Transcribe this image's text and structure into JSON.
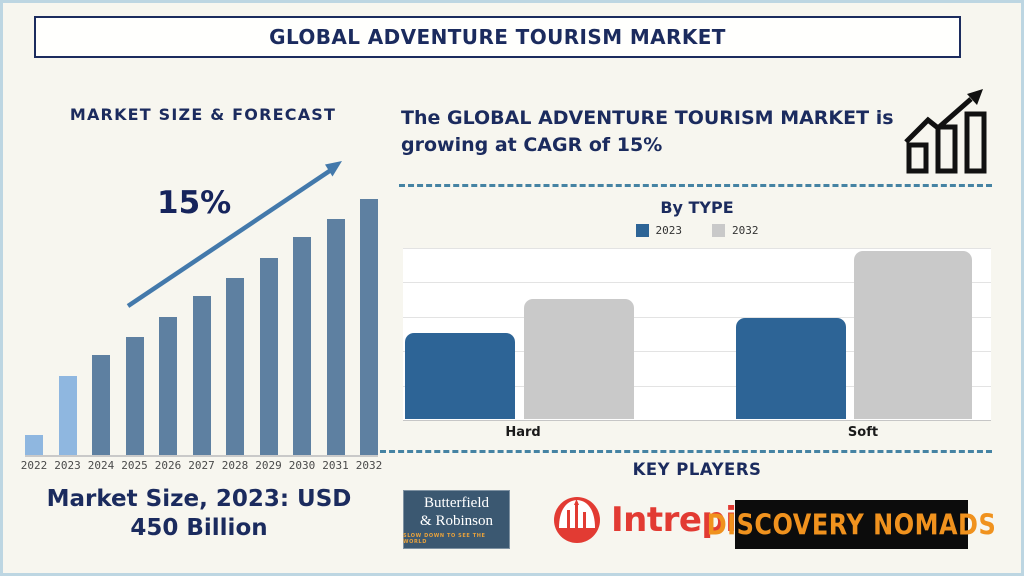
{
  "title_bar": "GLOBAL ADVENTURE TOURISM MARKET",
  "left_panel": {
    "heading": "MARKET SIZE & FORECAST",
    "growth_label": "15%",
    "caption": "Market Size, 2023: USD 450 Billion"
  },
  "right_panel": {
    "cagr_text": "The GLOBAL ADVENTURE TOURISM MARKET is growing at CAGR of 15%",
    "key_players_heading": "KEY PLAYERS",
    "players": [
      {
        "name": "Butterfield & Robinson",
        "line1": "Butterfield",
        "line2": "& Robinson",
        "tagline": "SLOW DOWN TO SEE THE WORLD"
      },
      {
        "name": "Intrepid",
        "label": "Intrepid"
      },
      {
        "name": "Discovery Nomads",
        "label": "DISCOVERY NOMADS"
      }
    ]
  },
  "chart_data": [
    {
      "type": "bar",
      "title": "MARKET SIZE & FORECAST",
      "categories": [
        "2022",
        "2023",
        "2024",
        "2025",
        "2026",
        "2027",
        "2028",
        "2029",
        "2030",
        "2031",
        "2032"
      ],
      "values": [
        8,
        31,
        39,
        46,
        54,
        62,
        69,
        77,
        85,
        92,
        100
      ],
      "unit": "relative bar height, % of tallest (stylized forecast)",
      "bar_color_keys": [
        "light_blue",
        "light_blue",
        "steel_blue",
        "steel_blue",
        "steel_blue",
        "steel_blue",
        "steel_blue",
        "steel_blue",
        "steel_blue",
        "steel_blue",
        "steel_blue"
      ],
      "annotation": "15% CAGR trend arrow",
      "note": "Market Size, 2023: USD 450 Billion",
      "xlabel": "",
      "ylabel": "",
      "grid": false,
      "legend_position": "none"
    },
    {
      "type": "bar",
      "title": "By TYPE",
      "categories": [
        "Hard",
        "Soft"
      ],
      "series": [
        {
          "name": "2023",
          "values": [
            50,
            59
          ]
        },
        {
          "name": "2032",
          "values": [
            70,
            98
          ]
        }
      ],
      "ylim": [
        0,
        100
      ],
      "grid": true,
      "legend_position": "top",
      "xlabel": "",
      "ylabel": ""
    }
  ],
  "colors": {
    "navy": "#1b2b5e",
    "steel_blue": "#5e80a1",
    "light_blue": "#8fb7e0",
    "trend_arrow": "#4379ab",
    "type_2023_blue": "#2d6496",
    "type_2032_gray": "#c9c9c9",
    "dashed_divider": "#4583a3",
    "intrepid_red": "#e23b33",
    "nomads_orange": "#f0921e",
    "br_background": "#3b5871",
    "br_tagline_orange": "#e8a23c"
  }
}
